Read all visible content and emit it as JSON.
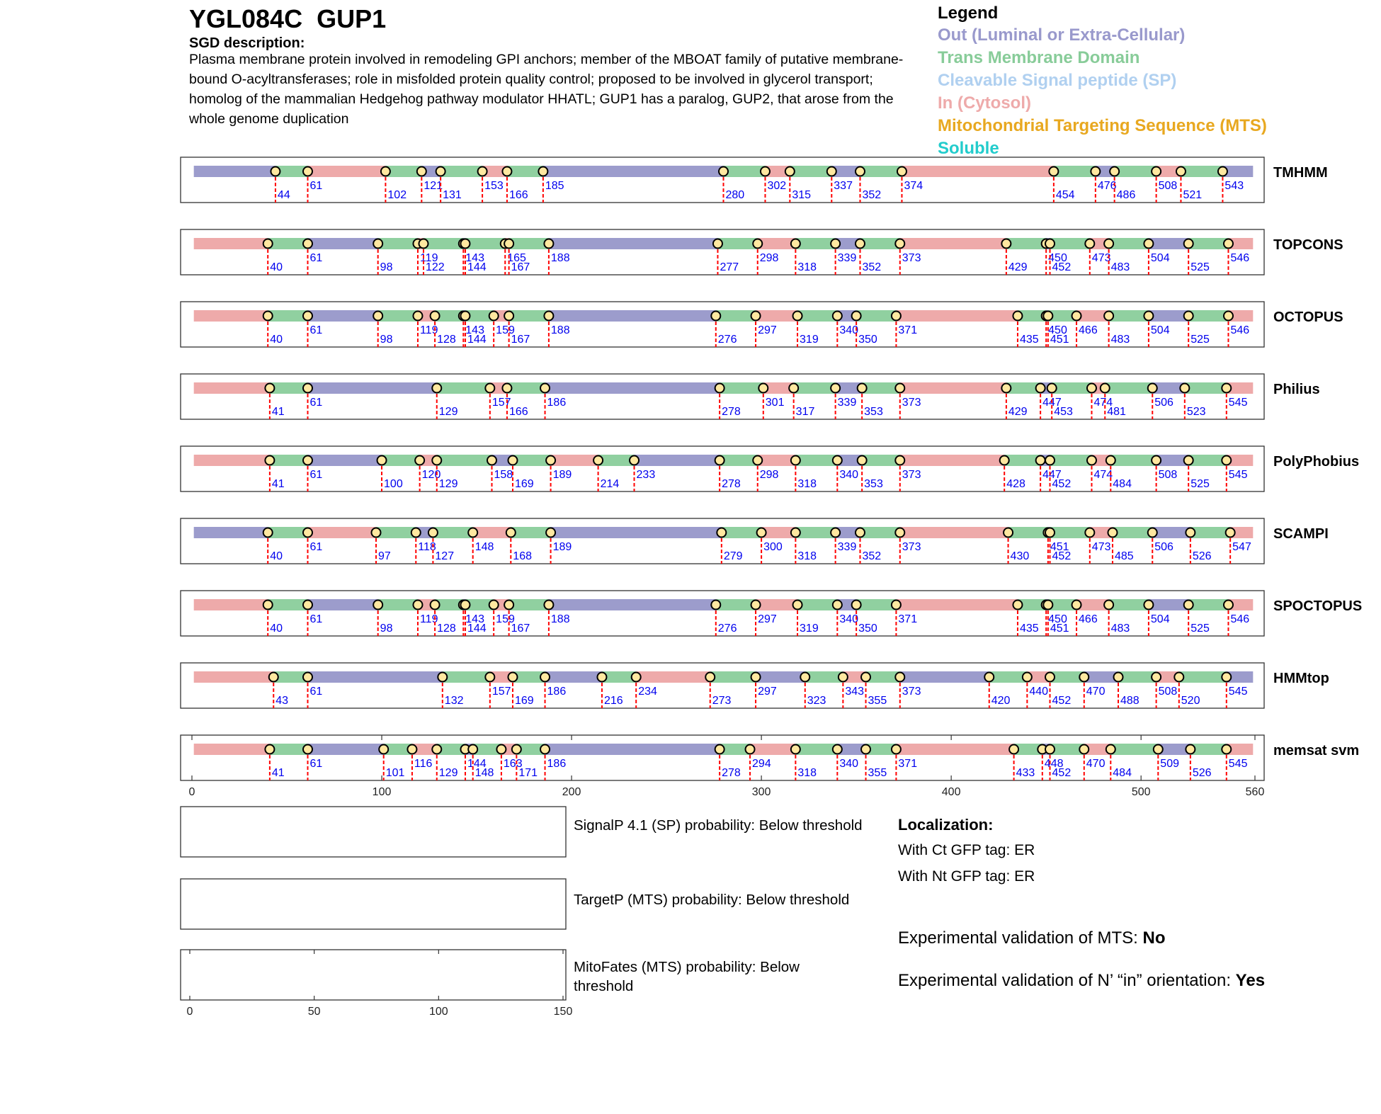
{
  "header": {
    "title": "YGL084C  GUP1",
    "desc_heading": "SGD description:",
    "desc_text": "Plasma membrane protein involved in remodeling GPI anchors; member of the MBOAT family of putative membrane-bound O-acyltransferases; role in misfolded protein quality control; proposed to be involved in glycerol transport; homolog of the mammalian Hedgehog pathway modulator HHATL; GUP1 has a paralog, GUP2, that arose from the whole genome duplication"
  },
  "legend": {
    "title": "Legend",
    "items": [
      {
        "label": "Out (Luminal or Extra-Cellular)",
        "color": "#9999cc"
      },
      {
        "label": "Trans Membrane Domain",
        "color": "#88cc99"
      },
      {
        "label": "Cleavable Signal peptide (SP)",
        "color": "#b0d0f0"
      },
      {
        "label": "In (Cytosol)",
        "color": "#eeaaaa"
      },
      {
        "label": "Mitochondrial Targeting Sequence (MTS)",
        "color": "#e8a820"
      },
      {
        "label": "Soluble",
        "color": "#22cccc"
      }
    ]
  },
  "colors": {
    "out": "#9c9ccc",
    "tm": "#90d0a0",
    "in": "#eeaaaa",
    "marker_fill": "#ffe8a0",
    "boundary": "#ff0000",
    "label": "#0000ee"
  },
  "chart_data": [
    {
      "type": "topology-tracks",
      "xlim": [
        0,
        560
      ],
      "xticks": [
        0,
        100,
        200,
        300,
        400,
        500,
        560
      ],
      "tracks": [
        {
          "name": "TMHMM",
          "start": "out",
          "boundaries": [
            44,
            61,
            102,
            121,
            131,
            153,
            166,
            185,
            280,
            302,
            315,
            337,
            352,
            374,
            454,
            476,
            486,
            508,
            521,
            543
          ]
        },
        {
          "name": "TOPCONS",
          "start": "in",
          "boundaries": [
            40,
            61,
            98,
            119,
            122,
            143,
            144,
            165,
            167,
            188,
            277,
            298,
            318,
            339,
            352,
            373,
            429,
            450,
            452,
            473,
            483,
            504,
            525,
            546
          ]
        },
        {
          "name": "OCTOPUS",
          "start": "in",
          "boundaries": [
            40,
            61,
            98,
            119,
            128,
            143,
            144,
            159,
            167,
            188,
            276,
            297,
            319,
            340,
            350,
            371,
            435,
            450,
            451,
            466,
            483,
            504,
            525,
            546
          ]
        },
        {
          "name": "Philius",
          "start": "in",
          "boundaries": [
            41,
            61,
            129,
            157,
            166,
            186,
            278,
            301,
            317,
            339,
            353,
            373,
            429,
            447,
            453,
            474,
            481,
            506,
            523,
            545
          ]
        },
        {
          "name": "PolyPhobius",
          "start": "in",
          "boundaries": [
            41,
            61,
            100,
            120,
            129,
            158,
            169,
            189,
            214,
            233,
            278,
            298,
            318,
            340,
            353,
            373,
            428,
            447,
            452,
            474,
            484,
            508,
            525,
            545
          ]
        },
        {
          "name": "SCAMPI",
          "start": "out",
          "boundaries": [
            40,
            61,
            97,
            118,
            127,
            148,
            168,
            189,
            279,
            300,
            318,
            339,
            352,
            373,
            430,
            451,
            452,
            473,
            485,
            506,
            526,
            547
          ]
        },
        {
          "name": "SPOCTOPUS",
          "start": "in",
          "boundaries": [
            40,
            61,
            98,
            119,
            128,
            143,
            144,
            159,
            167,
            188,
            276,
            297,
            319,
            340,
            350,
            371,
            435,
            450,
            451,
            466,
            483,
            504,
            525,
            546
          ]
        },
        {
          "name": "HMMtop",
          "start": "in",
          "boundaries": [
            43,
            61,
            132,
            157,
            169,
            186,
            216,
            234,
            273,
            297,
            323,
            343,
            355,
            373,
            420,
            440,
            452,
            470,
            488,
            508,
            520,
            545
          ]
        },
        {
          "name": "memsat svm",
          "start": "in",
          "boundaries": [
            41,
            61,
            101,
            116,
            129,
            144,
            148,
            163,
            171,
            186,
            278,
            294,
            318,
            340,
            355,
            371,
            433,
            448,
            452,
            470,
            484,
            509,
            526,
            545
          ]
        }
      ]
    },
    {
      "type": "probability-panels",
      "xlim": [
        0,
        150
      ],
      "xticks": [
        0,
        50,
        100,
        150
      ],
      "panels": [
        {
          "label": "SignalP 4.1 (SP) probability: Below threshold"
        },
        {
          "label": "TargetP (MTS) probability: Below threshold"
        },
        {
          "label_line1": "MitoFates (MTS) probability: Below",
          "label_line2": "threshold"
        }
      ]
    }
  ],
  "localization": {
    "heading": "Localization:",
    "ct": "With Ct GFP tag: ER",
    "nt": "With Nt GFP tag: ER",
    "mts_label": "Experimental validation of MTS: ",
    "mts_value": "No",
    "orient_label": "Experimental validation of N’ “in” orientation: ",
    "orient_value": "Yes"
  }
}
